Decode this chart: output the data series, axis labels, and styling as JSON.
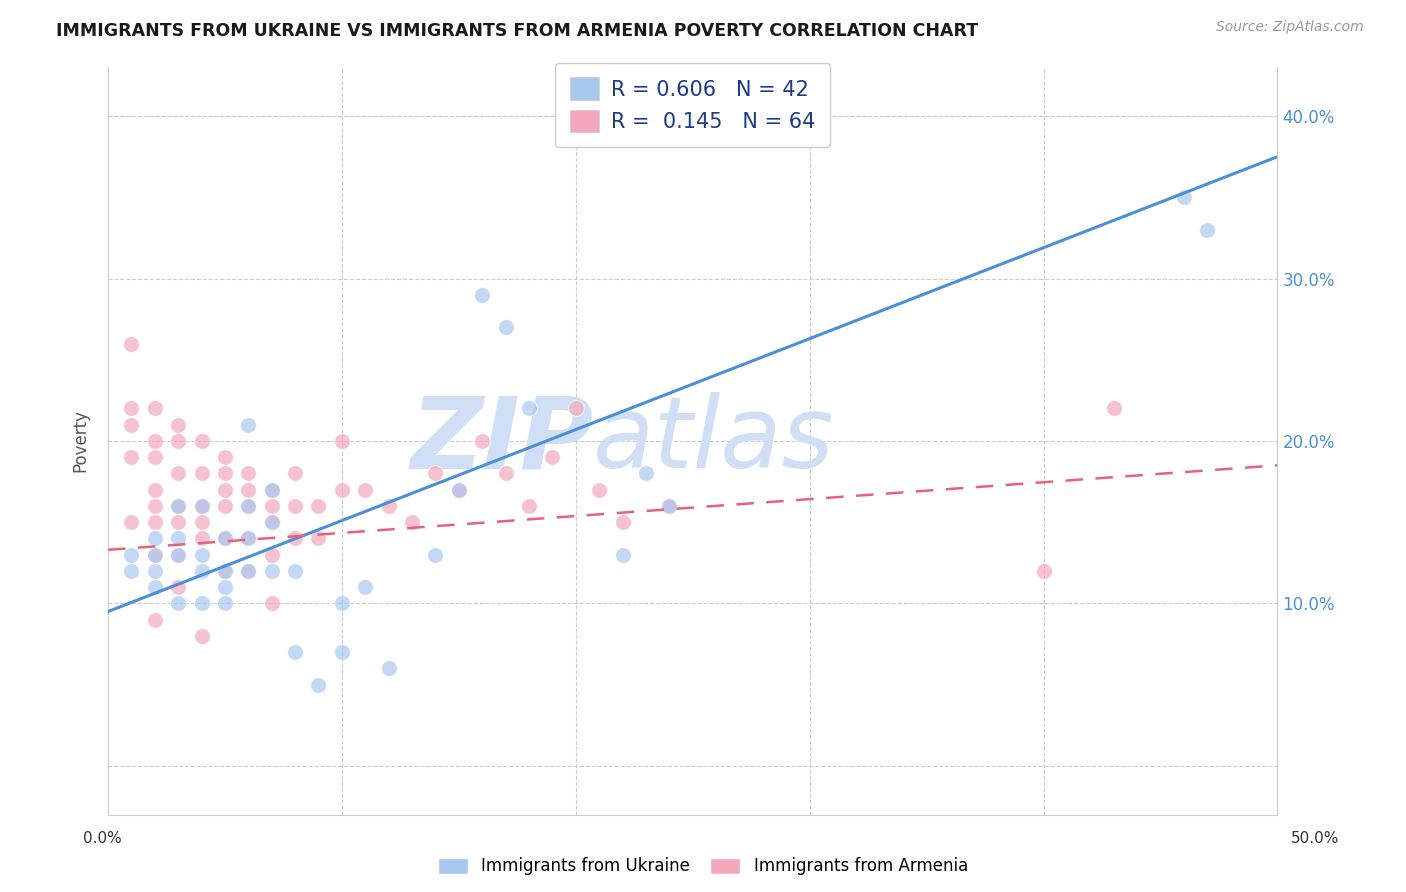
{
  "title": "IMMIGRANTS FROM UKRAINE VS IMMIGRANTS FROM ARMENIA POVERTY CORRELATION CHART",
  "source": "Source: ZipAtlas.com",
  "ylabel": "Poverty",
  "y_ticks": [
    0.0,
    0.1,
    0.2,
    0.3,
    0.4
  ],
  "y_tick_labels_right": [
    "",
    "10.0%",
    "20.0%",
    "30.0%",
    "40.0%"
  ],
  "xlim": [
    0.0,
    0.5
  ],
  "ylim": [
    -0.03,
    0.43
  ],
  "ukraine_color": "#A8C8F0",
  "armenia_color": "#F5A8BC",
  "ukraine_line_color": "#4A90D9",
  "armenia_line_color": "#E8607A",
  "ukraine_R": 0.606,
  "ukraine_N": 42,
  "armenia_R": 0.145,
  "armenia_N": 64,
  "ukraine_scatter_x": [
    0.01,
    0.01,
    0.02,
    0.02,
    0.02,
    0.02,
    0.03,
    0.03,
    0.03,
    0.03,
    0.04,
    0.04,
    0.04,
    0.04,
    0.05,
    0.05,
    0.05,
    0.05,
    0.06,
    0.06,
    0.06,
    0.06,
    0.07,
    0.07,
    0.07,
    0.08,
    0.08,
    0.09,
    0.1,
    0.1,
    0.11,
    0.12,
    0.14,
    0.15,
    0.16,
    0.17,
    0.18,
    0.22,
    0.23,
    0.24,
    0.46,
    0.47
  ],
  "ukraine_scatter_y": [
    0.13,
    0.12,
    0.11,
    0.14,
    0.12,
    0.13,
    0.1,
    0.13,
    0.16,
    0.14,
    0.1,
    0.13,
    0.16,
    0.12,
    0.11,
    0.14,
    0.1,
    0.12,
    0.14,
    0.16,
    0.12,
    0.21,
    0.12,
    0.15,
    0.17,
    0.07,
    0.12,
    0.05,
    0.07,
    0.1,
    0.11,
    0.06,
    0.13,
    0.17,
    0.29,
    0.27,
    0.22,
    0.13,
    0.18,
    0.16,
    0.35,
    0.33
  ],
  "armenia_scatter_x": [
    0.01,
    0.01,
    0.01,
    0.01,
    0.01,
    0.02,
    0.02,
    0.02,
    0.02,
    0.02,
    0.02,
    0.02,
    0.02,
    0.03,
    0.03,
    0.03,
    0.03,
    0.03,
    0.03,
    0.03,
    0.04,
    0.04,
    0.04,
    0.04,
    0.04,
    0.04,
    0.05,
    0.05,
    0.05,
    0.05,
    0.05,
    0.05,
    0.06,
    0.06,
    0.06,
    0.06,
    0.06,
    0.07,
    0.07,
    0.07,
    0.07,
    0.07,
    0.08,
    0.08,
    0.08,
    0.09,
    0.09,
    0.1,
    0.1,
    0.11,
    0.12,
    0.13,
    0.14,
    0.15,
    0.16,
    0.17,
    0.18,
    0.19,
    0.2,
    0.21,
    0.22,
    0.24,
    0.4,
    0.43
  ],
  "armenia_scatter_y": [
    0.26,
    0.22,
    0.21,
    0.19,
    0.15,
    0.22,
    0.2,
    0.19,
    0.17,
    0.16,
    0.15,
    0.13,
    0.09,
    0.21,
    0.2,
    0.18,
    0.16,
    0.15,
    0.13,
    0.11,
    0.2,
    0.18,
    0.16,
    0.15,
    0.14,
    0.08,
    0.19,
    0.18,
    0.17,
    0.16,
    0.14,
    0.12,
    0.18,
    0.17,
    0.16,
    0.14,
    0.12,
    0.17,
    0.16,
    0.15,
    0.13,
    0.1,
    0.18,
    0.16,
    0.14,
    0.16,
    0.14,
    0.17,
    0.2,
    0.17,
    0.16,
    0.15,
    0.18,
    0.17,
    0.2,
    0.18,
    0.16,
    0.19,
    0.22,
    0.17,
    0.15,
    0.16,
    0.12,
    0.22
  ],
  "watermark_zip": "ZIP",
  "watermark_atlas": "atlas",
  "watermark_color": "#D0DFF5",
  "watermark_fontsize_zip": 72,
  "watermark_fontsize_atlas": 72,
  "background_color": "#FFFFFF",
  "grid_color": "#CCCCCC",
  "legend_text_color": "#1A3A8A",
  "right_axis_color": "#4A90D9",
  "x_tick_positions": [
    0.0,
    0.1,
    0.2,
    0.3,
    0.4,
    0.5
  ]
}
